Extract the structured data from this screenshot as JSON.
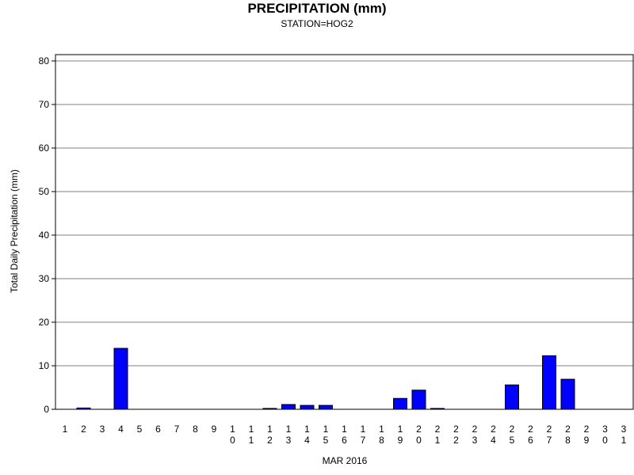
{
  "chart_data": {
    "type": "bar",
    "title": "PRECIPITATION (mm)",
    "subtitle": "STATION=HOG2",
    "xlabel": "MAR 2016",
    "ylabel": "Total Daily Precipitation (mm)",
    "ylim": [
      0,
      80
    ],
    "yticks": [
      0,
      10,
      20,
      30,
      40,
      50,
      60,
      70,
      80
    ],
    "grid": true,
    "bar_color": "#0000ff",
    "categories": [
      "1",
      "2",
      "3",
      "4",
      "5",
      "6",
      "7",
      "8",
      "9",
      "10",
      "11",
      "12",
      "13",
      "14",
      "15",
      "16",
      "17",
      "18",
      "19",
      "20",
      "21",
      "22",
      "23",
      "24",
      "25",
      "26",
      "27",
      "28",
      "29",
      "30",
      "31"
    ],
    "values": [
      0,
      0.3,
      0,
      14.0,
      0,
      0,
      0,
      0,
      0,
      0,
      0,
      0.2,
      1.1,
      0.9,
      0.9,
      0,
      0,
      0,
      2.5,
      4.4,
      0.2,
      0,
      0,
      0,
      5.6,
      0,
      12.3,
      6.9,
      0,
      0,
      0
    ]
  }
}
